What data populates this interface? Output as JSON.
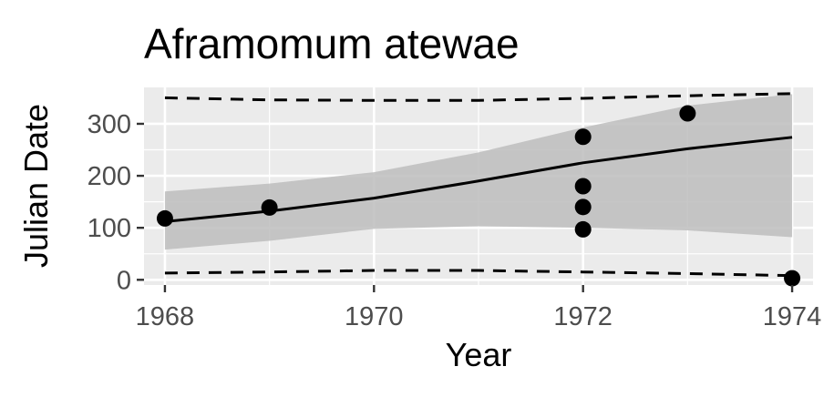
{
  "chart_data": {
    "type": "scatter",
    "title": "Aframomum atewae",
    "xlabel": "Year",
    "ylabel": "Julian Date",
    "xlim": [
      1967.8,
      1974.2
    ],
    "ylim": [
      -10,
      370
    ],
    "x_ticks": [
      1968,
      1970,
      1972,
      1974
    ],
    "y_ticks": [
      0,
      100,
      200,
      300
    ],
    "grid": true,
    "legend": "none",
    "colors": {
      "panel": "#ebebeb",
      "grid": "#ffffff",
      "points": "#000000",
      "ribbon": "#bdbdbd",
      "tick_label": "#4d4d4d"
    },
    "points": [
      {
        "x": 1968,
        "y": 118
      },
      {
        "x": 1969,
        "y": 139
      },
      {
        "x": 1972,
        "y": 275
      },
      {
        "x": 1972,
        "y": 180
      },
      {
        "x": 1972,
        "y": 140
      },
      {
        "x": 1972,
        "y": 97
      },
      {
        "x": 1973,
        "y": 320
      },
      {
        "x": 1974,
        "y": 3
      }
    ],
    "fit_line": {
      "x": [
        1968,
        1969,
        1970,
        1971,
        1972,
        1973,
        1974
      ],
      "y": [
        112,
        132,
        157,
        190,
        225,
        252,
        274
      ]
    },
    "confidence_band": {
      "x": [
        1968,
        1969,
        1970,
        1971,
        1972,
        1973,
        1974
      ],
      "lower": [
        58,
        75,
        98,
        103,
        100,
        95,
        82
      ],
      "upper": [
        170,
        185,
        207,
        245,
        293,
        335,
        357
      ]
    },
    "upper_bound": {
      "x": [
        1968,
        1969,
        1970,
        1971,
        1972,
        1973,
        1974
      ],
      "y": [
        350,
        346,
        345,
        345,
        349,
        354,
        358
      ]
    },
    "lower_bound": {
      "x": [
        1968,
        1969,
        1970,
        1971,
        1972,
        1973,
        1974
      ],
      "y": [
        13,
        15,
        18,
        18,
        15,
        12,
        8
      ]
    }
  }
}
